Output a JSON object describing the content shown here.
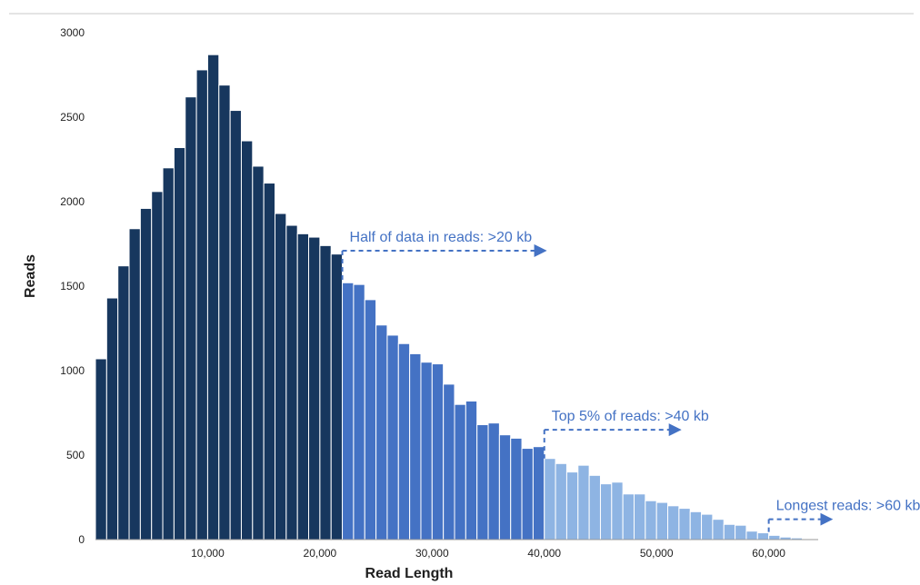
{
  "chart_data": {
    "type": "bar",
    "xlabel": "Read Length",
    "ylabel": "Reads",
    "xlim": [
      0,
      68000
    ],
    "ylim": [
      0,
      3000
    ],
    "bin_width": 1000,
    "x_ticks": [
      10000,
      20000,
      30000,
      40000,
      50000,
      60000
    ],
    "x_tick_labels": [
      "10,000",
      "20,000",
      "30,000",
      "40,000",
      "50,000",
      "60,000"
    ],
    "y_ticks": [
      0,
      500,
      1000,
      1500,
      2000,
      2500,
      3000
    ],
    "y_tick_labels": [
      "0",
      "500",
      "1000",
      "1500",
      "2000",
      "2500",
      "3000"
    ],
    "grid": false,
    "bins_start": [
      0,
      1000,
      2000,
      3000,
      4000,
      5000,
      6000,
      7000,
      8000,
      9000,
      10000,
      11000,
      12000,
      13000,
      14000,
      15000,
      16000,
      17000,
      18000,
      19000,
      20000,
      21000,
      22000,
      23000,
      24000,
      25000,
      26000,
      27000,
      28000,
      29000,
      30000,
      31000,
      32000,
      33000,
      34000,
      35000,
      36000,
      37000,
      38000,
      39000,
      40000,
      41000,
      42000,
      43000,
      44000,
      45000,
      46000,
      47000,
      48000,
      49000,
      50000,
      51000,
      52000,
      53000,
      54000,
      55000,
      56000,
      57000,
      58000,
      59000,
      60000,
      61000,
      62000,
      63000
    ],
    "values": [
      1070,
      1430,
      1620,
      1840,
      1960,
      2060,
      2200,
      2320,
      2620,
      2780,
      2870,
      2690,
      2540,
      2360,
      2210,
      2110,
      1930,
      1860,
      1810,
      1790,
      1740,
      1690,
      1520,
      1510,
      1420,
      1270,
      1210,
      1160,
      1100,
      1050,
      1040,
      920,
      800,
      820,
      680,
      690,
      620,
      600,
      540,
      550,
      480,
      450,
      400,
      440,
      380,
      330,
      340,
      270,
      270,
      230,
      220,
      200,
      185,
      165,
      150,
      120,
      90,
      85,
      50,
      40,
      25,
      15,
      10,
      5
    ],
    "segment_breaks": [
      22000,
      40000
    ],
    "colors": [
      "#17375e",
      "#4472c4",
      "#8eb4e3"
    ],
    "annotations": [
      {
        "text": "Half of data in reads: >20 kb",
        "x": 22000,
        "y": 1710,
        "arrow_to_x": 40000,
        "color": "#4472c4"
      },
      {
        "text": "Top 5% of reads: >40 kb",
        "x": 40000,
        "y": 650,
        "arrow_to_x": 52000,
        "color": "#4472c4"
      },
      {
        "text": "Longest reads: >60 kb",
        "x": 60000,
        "y": 120,
        "arrow_to_x": 65500,
        "color": "#4472c4"
      }
    ]
  }
}
